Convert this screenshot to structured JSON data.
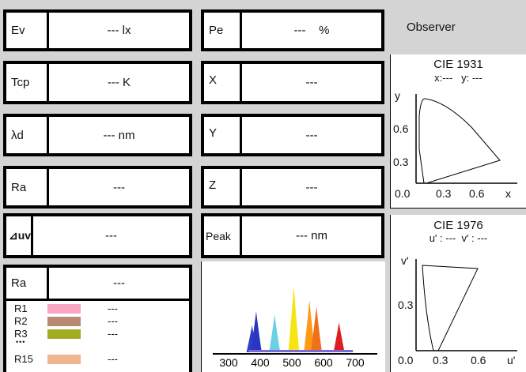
{
  "left_cells": [
    {
      "label": "Ev",
      "value": "--- lx"
    },
    {
      "label": "Tcp",
      "value": "--- K"
    },
    {
      "label": "λd",
      "value": "--- nm"
    },
    {
      "label": "Ra",
      "value": "---"
    },
    {
      "label": "⊿uv",
      "value": "---"
    },
    {
      "label": "Ra",
      "value": "---"
    }
  ],
  "mid_cells": [
    {
      "label": "Pe",
      "value": "---    %"
    },
    {
      "label": "X",
      "value": "---"
    },
    {
      "label": "Y",
      "value": "---"
    },
    {
      "label": "Z",
      "value": "---"
    },
    {
      "label": "Peak",
      "value": "--- nm"
    }
  ],
  "ri_list": [
    {
      "label": "R1",
      "color": "#f7a6c4",
      "value": "---"
    },
    {
      "label": "R2",
      "color": "#b88a72",
      "value": "---"
    },
    {
      "label": "R3",
      "color": "#a3ad1f",
      "value": "---"
    },
    {
      "label": "R15",
      "color": "#f0b48e",
      "value": "---"
    }
  ],
  "ri_ellipsis": "•••",
  "observer_label": "Observer",
  "cie1931": {
    "title": "CIE 1931",
    "readout": "x:---   y: ---",
    "y_axis_label": "y",
    "x_axis_label": "x",
    "y_ticks": [
      "0.6",
      "0.3"
    ],
    "x_ticks": [
      "0.0",
      "0.3",
      "0.6"
    ]
  },
  "cie1976": {
    "title": "CIE 1976",
    "readout": "u' : ---  v' : ---",
    "y_axis_label": "v'",
    "x_axis_label": "u'",
    "y_ticks": [
      "0.3"
    ],
    "x_ticks": [
      "0.0",
      "0.3",
      "0.6"
    ]
  },
  "spectrum": {
    "x_ticks": [
      "300",
      "400",
      "500",
      "600",
      "700"
    ],
    "peaks": [
      {
        "nm": 390,
        "height": 0.34,
        "color": "#2d3fc9"
      },
      {
        "nm": 402,
        "height": 0.52,
        "color": "#2a36c0"
      },
      {
        "nm": 455,
        "height": 0.48,
        "color": "#6ccfe6"
      },
      {
        "nm": 510,
        "height": 0.84,
        "color": "#f6e514"
      },
      {
        "nm": 555,
        "height": 0.66,
        "color": "#ff9a12"
      },
      {
        "nm": 575,
        "height": 0.58,
        "color": "#f0701c"
      },
      {
        "nm": 640,
        "height": 0.38,
        "color": "#dc1e1e"
      }
    ]
  }
}
